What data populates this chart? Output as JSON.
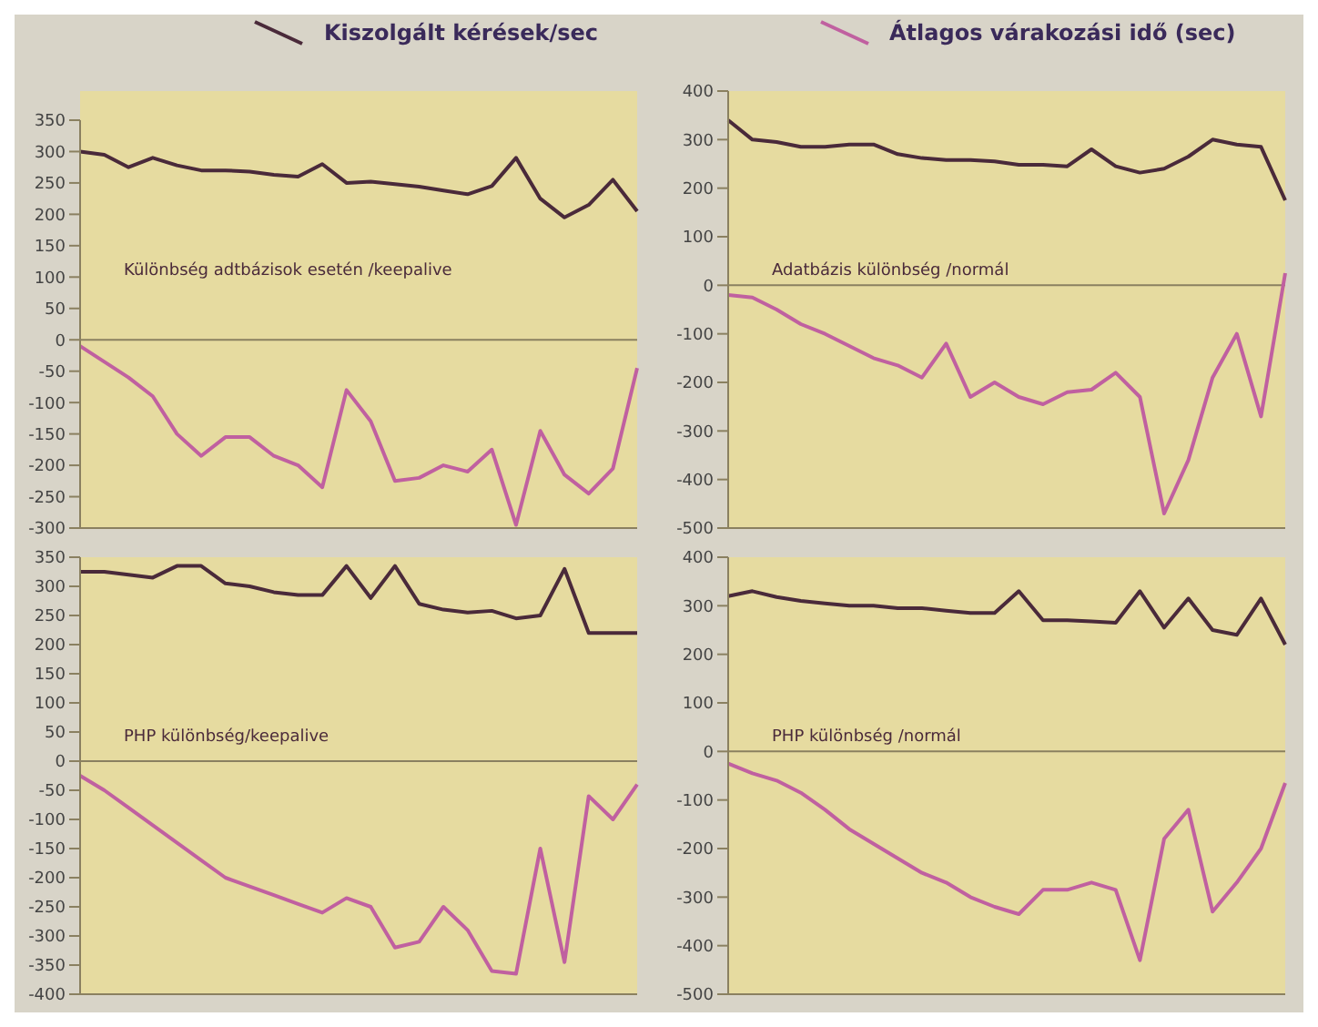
{
  "chart_data": [
    {
      "type": "line",
      "legend": "top",
      "annotations": [
        "Különbség adtbázisok esetén /keepalive"
      ],
      "categories": [
        null,
        null,
        null,
        null,
        null,
        null,
        null,
        null,
        null,
        null,
        null,
        null,
        null,
        null,
        null,
        null,
        null,
        null,
        null,
        null,
        null,
        null,
        null,
        null
      ],
      "ylim": [
        -300,
        350
      ],
      "yticks": [
        -300,
        -250,
        -200,
        -150,
        -100,
        -50,
        0,
        50,
        100,
        150,
        200,
        250,
        300,
        350
      ],
      "ref_lines": [
        {
          "axis": "y",
          "value": 0,
          "color": "#8a8060"
        }
      ],
      "tick_labels": "y",
      "marker": "none",
      "series": [
        {
          "name": "Kiszolgált  kérések/sec",
          "color": "#4a2a3a",
          "values": [
            300,
            295,
            275,
            290,
            278,
            270,
            270,
            268,
            263,
            260,
            280,
            250,
            252,
            248,
            244,
            238,
            232,
            245,
            290,
            225,
            195,
            215,
            255,
            205
          ]
        },
        {
          "name": "Átlagos várakozási idő (sec)",
          "color": "#c060a0",
          "values": [
            -10,
            -35,
            -60,
            -90,
            -150,
            -185,
            -155,
            -155,
            -185,
            -200,
            -235,
            -80,
            -130,
            -225,
            -220,
            -200,
            -210,
            -175,
            -295,
            -145,
            -215,
            -245,
            -205,
            -45
          ]
        }
      ]
    },
    {
      "type": "line",
      "annotations": [
        "Adatbázis különbség /normál"
      ],
      "categories": [
        null,
        null,
        null,
        null,
        null,
        null,
        null,
        null,
        null,
        null,
        null,
        null,
        null,
        null,
        null,
        null,
        null,
        null,
        null,
        null,
        null,
        null,
        null,
        null
      ],
      "ylim": [
        -500,
        400
      ],
      "yticks": [
        -500,
        -400,
        -300,
        -200,
        -100,
        0,
        100,
        200,
        300,
        400
      ],
      "ref_lines": [
        {
          "axis": "y",
          "value": 0,
          "color": "#8a8060"
        }
      ],
      "tick_labels": "y",
      "marker": "none",
      "series": [
        {
          "color": "#4a2a3a",
          "values": [
            340,
            300,
            295,
            285,
            285,
            290,
            290,
            270,
            262,
            258,
            258,
            255,
            248,
            248,
            245,
            280,
            245,
            232,
            240,
            265,
            300,
            290,
            285,
            175
          ]
        },
        {
          "color": "#c060a0",
          "values": [
            -20,
            -25,
            -50,
            -80,
            -100,
            -125,
            -150,
            -165,
            -190,
            -120,
            -230,
            -200,
            -230,
            -245,
            -220,
            -215,
            -180,
            -230,
            -470,
            -360,
            -190,
            -100,
            -270,
            25
          ]
        }
      ]
    },
    {
      "type": "line",
      "annotations": [
        "PHP különbség/keepalive"
      ],
      "categories": [
        null,
        null,
        null,
        null,
        null,
        null,
        null,
        null,
        null,
        null,
        null,
        null,
        null,
        null,
        null,
        null,
        null,
        null,
        null,
        null,
        null,
        null,
        null,
        null
      ],
      "ylim": [
        -400,
        350
      ],
      "yticks": [
        -400,
        -350,
        -300,
        -250,
        -200,
        -150,
        -100,
        -50,
        0,
        50,
        100,
        150,
        200,
        250,
        300,
        350
      ],
      "ref_lines": [
        {
          "axis": "y",
          "value": 0,
          "color": "#8a8060"
        }
      ],
      "tick_labels": "y",
      "marker": "none",
      "series": [
        {
          "color": "#4a2a3a",
          "values": [
            325,
            325,
            320,
            315,
            335,
            335,
            305,
            300,
            290,
            285,
            285,
            335,
            280,
            335,
            270,
            260,
            255,
            258,
            245,
            250,
            330,
            220,
            220,
            220
          ]
        },
        {
          "color": "#c060a0",
          "values": [
            -25,
            -50,
            -80,
            -110,
            -140,
            -170,
            -200,
            -215,
            -230,
            -245,
            -260,
            -235,
            -250,
            -320,
            -310,
            -250,
            -290,
            -360,
            -365,
            -150,
            -345,
            -60,
            -100,
            -40
          ]
        }
      ]
    },
    {
      "type": "line",
      "annotations": [
        "PHP különbség /normál"
      ],
      "categories": [
        null,
        null,
        null,
        null,
        null,
        null,
        null,
        null,
        null,
        null,
        null,
        null,
        null,
        null,
        null,
        null,
        null,
        null,
        null,
        null,
        null,
        null,
        null,
        null
      ],
      "ylim": [
        -500,
        400
      ],
      "yticks": [
        -500,
        -400,
        -300,
        -200,
        -100,
        0,
        100,
        200,
        300,
        400
      ],
      "ref_lines": [
        {
          "axis": "y",
          "value": 0,
          "color": "#8a8060"
        }
      ],
      "tick_labels": "y",
      "marker": "none",
      "series": [
        {
          "color": "#4a2a3a",
          "values": [
            320,
            330,
            318,
            310,
            305,
            300,
            300,
            295,
            295,
            290,
            285,
            285,
            330,
            270,
            270,
            268,
            265,
            330,
            255,
            315,
            250,
            240,
            315,
            220
          ]
        },
        {
          "color": "#c060a0",
          "values": [
            -25,
            -45,
            -60,
            -85,
            -120,
            -160,
            -190,
            -220,
            -250,
            -270,
            -300,
            -320,
            -335,
            -285,
            -285,
            -270,
            -285,
            -430,
            -180,
            -120,
            -330,
            -270,
            -200,
            -65
          ]
        }
      ]
    }
  ]
}
